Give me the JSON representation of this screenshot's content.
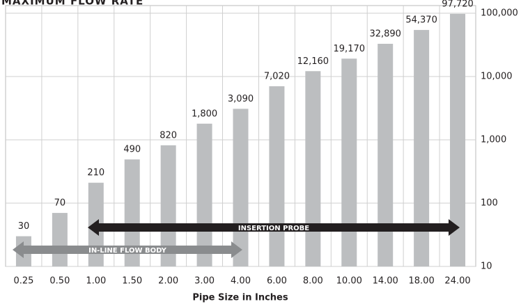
{
  "chart_data": {
    "type": "bar",
    "title": "MAXIMUM FLOW RATE",
    "x_label": "Pipe Size in Inches",
    "categories": [
      "0.25",
      "0.50",
      "1.00",
      "1.50",
      "2.00",
      "3.00",
      "4.00",
      "6.00",
      "8.00",
      "10.00",
      "14.00",
      "18.00",
      "24.00"
    ],
    "values": [
      30,
      70,
      210,
      490,
      820,
      1800,
      3090,
      7020,
      12160,
      19170,
      32890,
      54370,
      97720
    ],
    "value_labels": [
      "30",
      "70",
      "210",
      "490",
      "820",
      "1,800",
      "3,090",
      "7,020",
      "12,160",
      "19,170",
      "32,890",
      "54,370",
      "97,720"
    ],
    "color": "#bcbec0",
    "ylim": [
      10,
      100000
    ],
    "log_scale": true,
    "yticks": [
      10,
      100,
      {
        "value": 1000,
        "label": "1,000"
      },
      {
        "value": 10000,
        "label": "10,000"
      },
      {
        "value": 100000,
        "label": "100,000"
      }
    ],
    "grid": true,
    "annotations": [
      "INSERTION PROBE",
      "IN-LINE FLOW BODY"
    ]
  }
}
